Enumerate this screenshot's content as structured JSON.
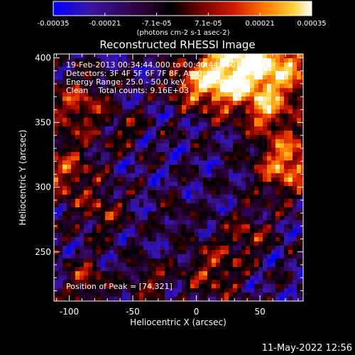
{
  "colorbar": {
    "tick_labels": [
      "-0.00035",
      "-0.00021",
      "-7.1e-05",
      "7.1e-05",
      "0.00021",
      "0.00035"
    ],
    "units_label": "(photons cm-2 s-1 asec-2)",
    "colormap": [
      "#0000ff",
      "#3a16a8",
      "#2b0033",
      "#000000",
      "#6a0000",
      "#d11a00",
      "#ff7a00",
      "#ffd23a",
      "#ffffff"
    ]
  },
  "plot": {
    "title": "Reconstructed RHESSI Image",
    "xlabel": "Heliocentric X (arcsec)",
    "ylabel": "Heliocentric Y (arcsec)",
    "xlim": [
      -112,
      84
    ],
    "ylim": [
      212,
      403
    ],
    "x_ticks": [
      -100,
      -50,
      0,
      50
    ],
    "y_ticks": [
      250,
      300,
      350,
      400
    ],
    "x_tick_labels": [
      "-100",
      "-50",
      "0",
      "50"
    ],
    "y_tick_labels": [
      "250",
      "300",
      "350",
      "400"
    ]
  },
  "annotations": {
    "line1": "19-Feb-2013 00:34:44.000 to 00:40:44.000",
    "line2": "Detectors: 3F 4F 5F 6F 7F 8F, Att 0",
    "line3": "Energy Range: 25.0 - 50.0 keV",
    "line4": "Clean    Total counts: 9.16E+03",
    "peak": "Position of Peak = [74,321]"
  },
  "timestamp": "11-May-2022 12:56"
}
